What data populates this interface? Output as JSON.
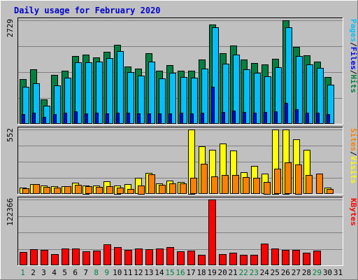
{
  "chart_data": {
    "type": "bar",
    "title": "Daily usage for February 2020",
    "days": [
      "1",
      "2",
      "3",
      "4",
      "5",
      "6",
      "7",
      "8",
      "9",
      "10",
      "11",
      "12",
      "13",
      "14",
      "15",
      "16",
      "17",
      "18",
      "19",
      "20",
      "21",
      "22",
      "23",
      "24",
      "25",
      "26",
      "27",
      "28",
      "29",
      "30",
      "31"
    ],
    "weekend_days": [
      1,
      8,
      9,
      15,
      16,
      22,
      23,
      29
    ],
    "colors": {
      "hits": "#008040",
      "files": "#00c0ff",
      "pages": "#0000ff",
      "visits": "#ffff00",
      "sites": "#ff8000",
      "kbytes": "#ff0000",
      "weekday_label": "#000000",
      "weekend_label": "#008040",
      "title": "#0000cc",
      "plot_bg": "#c0c0c0"
    },
    "panels": [
      {
        "name": "hits-files-pages",
        "ymax": 2729,
        "ymax_label": "2729",
        "legend": [
          {
            "text": "Pages",
            "color": "#00c0ff"
          },
          {
            "text": "/",
            "color": "#000000"
          },
          {
            "text": "Files",
            "color": "#0000ff"
          },
          {
            "text": "/",
            "color": "#000000"
          },
          {
            "text": "Hits",
            "color": "#008040"
          }
        ],
        "series": [
          {
            "name": "Hits",
            "color": "#008040",
            "values": [
              1180,
              1430,
              640,
              1290,
              1400,
              1780,
              1830,
              1760,
              1900,
              2080,
              1520,
              1450,
              1860,
              1400,
              1550,
              1400,
              1400,
              1700,
              2620,
              1870,
              2060,
              1700,
              1600,
              1560,
              1720,
              2730,
              2030,
              1810,
              1650,
              1230,
              null
            ]
          },
          {
            "name": "Files",
            "color": "#00c0ff",
            "values": [
              980,
              1070,
              480,
              1010,
              1210,
              1620,
              1620,
              1640,
              1740,
              1910,
              1360,
              1270,
              1650,
              1190,
              1350,
              1240,
              1220,
              1450,
              2550,
              1590,
              1820,
              1440,
              1350,
              1260,
              1500,
              2540,
              1790,
              1570,
              1480,
              1040,
              null
            ]
          },
          {
            "name": "Pages",
            "color": "#0000ff",
            "values": [
              250,
              290,
              180,
              250,
              300,
              330,
              280,
              290,
              280,
              300,
              300,
              270,
              280,
              280,
              280,
              290,
              280,
              290,
              980,
              320,
              350,
              310,
              290,
              310,
              340,
              560,
              380,
              300,
              300,
              250,
              null
            ]
          }
        ]
      },
      {
        "name": "visits-sites",
        "ymax": 552,
        "ymax_label": "552",
        "legend": [
          {
            "text": "Sites",
            "color": "#ff8000"
          },
          {
            "text": "/",
            "color": "#000000"
          },
          {
            "text": "Visits",
            "color": "#ffff00"
          }
        ],
        "series": [
          {
            "name": "Visits",
            "color": "#ffff00",
            "values": [
              55,
              85,
              70,
              65,
              65,
              95,
              75,
              70,
              110,
              75,
              85,
              140,
              180,
              90,
              115,
              100,
              555,
              410,
              380,
              430,
              370,
              185,
              240,
              175,
              555,
              555,
              470,
              380,
              null,
              55,
              null
            ]
          },
          {
            "name": "Sites",
            "color": "#ff8000",
            "values": [
              50,
              85,
              60,
              55,
              65,
              80,
              65,
              60,
              65,
              55,
              40,
              75,
              170,
              80,
              90,
              90,
              140,
              260,
              150,
              160,
              160,
              145,
              140,
              105,
              215,
              270,
              255,
              160,
              175,
              40,
              null
            ]
          }
        ]
      },
      {
        "name": "kbytes",
        "ymax": 122366,
        "ymax_label": "122366",
        "legend": [
          {
            "text": "KBytes",
            "color": "#ff0000"
          }
        ],
        "series": [
          {
            "name": "KBytes",
            "color": "#ff0000",
            "values": [
              25000,
              30000,
              29000,
              21000,
              31000,
              31000,
              26000,
              27000,
              39000,
              34000,
              29000,
              31000,
              30000,
              31000,
              34000,
              26000,
              27000,
              20000,
              122000,
              21000,
              23000,
              20000,
              20000,
              40000,
              31000,
              28000,
              28000,
              23000,
              27000,
              null,
              null
            ]
          }
        ]
      }
    ]
  }
}
